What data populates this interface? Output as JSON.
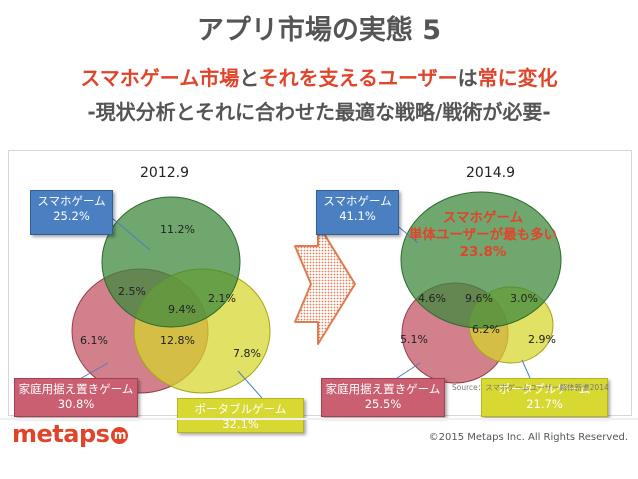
{
  "title": "アプリ市場の実態 5",
  "headline": {
    "part1": "スマホゲーム市場",
    "part2": "と",
    "part3": "それを支えるユーザー",
    "part4": "は",
    "part5": "常に変化"
  },
  "subline": "-現状分析とそれに合わせた最適な戦略/戦術が必要-",
  "left": {
    "year": "2012.9",
    "labels": {
      "smartphone": "スマホゲーム\n25.2%",
      "home": "家庭用据え置きゲーム\n30.8%",
      "portable": "ポータブルゲーム\n32.1%"
    },
    "values": {
      "smartphone_only": "11.2%",
      "smart_home": "2.5%",
      "all_three": "9.4%",
      "smart_portable": "2.1%",
      "home_only": "6.1%",
      "home_portable": "12.8%",
      "portable_only": "7.8%"
    }
  },
  "right": {
    "year": "2014.9",
    "labels": {
      "smartphone": "スマホゲーム\n41.1%",
      "home": "家庭用据え置きゲーム\n25.5%",
      "portable": "ポータブルゲーム\n21.7%"
    },
    "callout": "スマホゲーム\n単体ユーザーが最も多い\n23.8%",
    "values": {
      "smart_home": "4.6%",
      "all_three": "9.6%",
      "smart_portable": "3.0%",
      "home_only": "5.1%",
      "home_portable": "6.2%",
      "portable_only": "2.9%"
    }
  },
  "source": "Source：スマホゲームユーザー解体新書2014",
  "footer": {
    "logo": "metaps",
    "logo_mark": "m",
    "copyright": "©2015 Metaps Inc. All Rights Reserved."
  },
  "colors": {
    "accent": "#e0452c",
    "smartphone": "#3f8a3f",
    "home": "#c0505f",
    "portable": "#d6d62a"
  }
}
